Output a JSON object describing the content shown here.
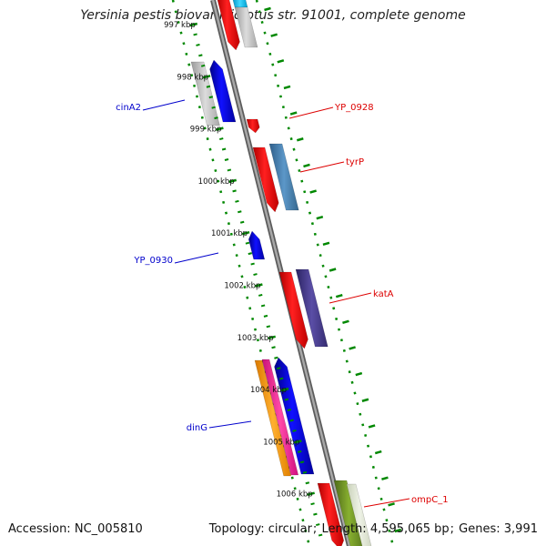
{
  "title": "Yersinia pestis biovar Microtus str. 91001, complete genome",
  "footer": {
    "accession_label": "Accession:",
    "accession": "NC_005810",
    "topology_label": "Topology:",
    "topology": "circular",
    "length_label": "Length:",
    "length": "4,595,065 bp",
    "genes_label": "Genes:",
    "genes": "3,991"
  },
  "ticks": [
    {
      "label": "997 kbp"
    },
    {
      "label": "998 kbp"
    },
    {
      "label": "999 kbp"
    },
    {
      "label": "1000 kbp"
    },
    {
      "label": "1001 kbp"
    },
    {
      "label": "1002 kbp"
    },
    {
      "label": "1003 kbp"
    },
    {
      "label": "1004 kbp"
    },
    {
      "label": "1005 kbp"
    },
    {
      "label": "1006 kbp"
    }
  ],
  "gene_labels": [
    {
      "name": "cinA2",
      "strand": "minus",
      "color": "#0000cc"
    },
    {
      "name": "YP_0930",
      "strand": "minus",
      "color": "#0000cc"
    },
    {
      "name": "dinG",
      "strand": "minus",
      "color": "#0000cc"
    },
    {
      "name": "YP_0928",
      "strand": "plus",
      "color": "#dd0000"
    },
    {
      "name": "tyrP",
      "strand": "plus",
      "color": "#dd0000"
    },
    {
      "name": "katA",
      "strand": "plus",
      "color": "#dd0000"
    },
    {
      "name": "ompC_1",
      "strand": "plus",
      "color": "#dd0000"
    }
  ],
  "colors": {
    "backbone": "#888888",
    "tick_dots": "#008800",
    "forward_cds": "#ff0000",
    "reverse_cds": "#0000ff",
    "blast_light_gray": "#c8c8c8",
    "blast_steel_blue": "#4682b4",
    "blast_indigo": "#483d8b",
    "blast_orange": "#ff9900",
    "blast_magenta": "#ff1493",
    "blast_olive": "#6b8e23",
    "blast_cyan": "#00bfff"
  }
}
